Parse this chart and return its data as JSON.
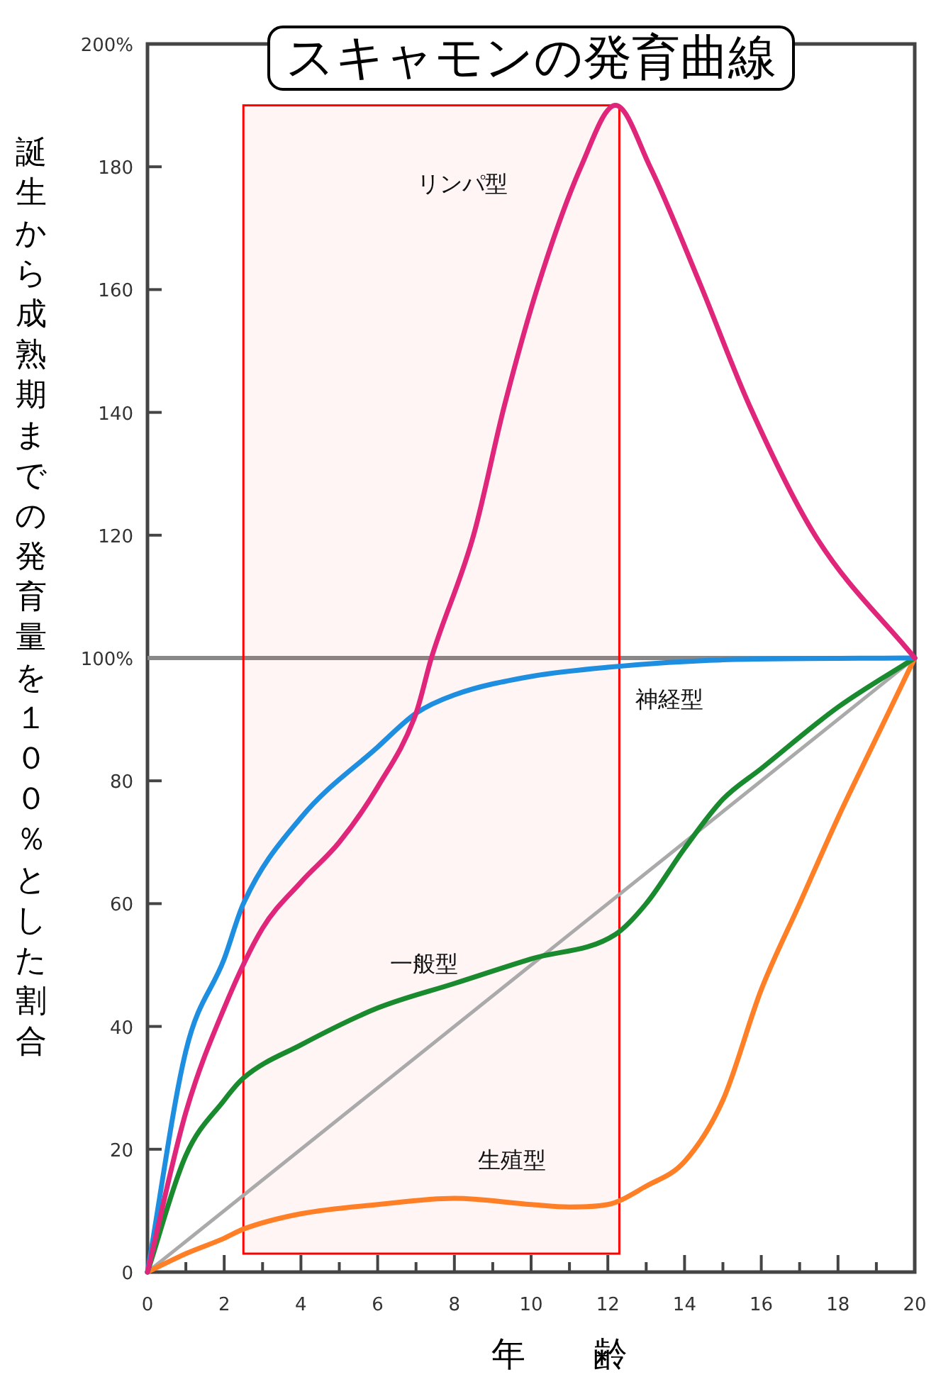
{
  "chart_data": {
    "type": "line",
    "title": "スキャモンの発育曲線",
    "xlabel": "年　　齢",
    "ylabel": "誕生から成熟期までの発育量を１００％とした割合",
    "xlim": [
      0,
      20
    ],
    "ylim": [
      0,
      200
    ],
    "xticks": [
      0,
      {
        "value": 1,
        "label": null
      },
      2,
      {
        "value": 3,
        "label": null
      },
      4,
      {
        "value": 5,
        "label": null
      },
      6,
      {
        "value": 7,
        "label": null
      },
      8,
      {
        "value": 9,
        "label": null
      },
      10,
      {
        "value": 11,
        "label": null
      },
      12,
      {
        "value": 13,
        "label": null
      },
      14,
      {
        "value": 15,
        "label": null
      },
      16,
      {
        "value": 17,
        "label": null
      },
      18,
      {
        "value": 19,
        "label": null
      },
      20
    ],
    "yticks": [
      0,
      20,
      40,
      60,
      80,
      {
        "value": 100,
        "label": "100%"
      },
      120,
      140,
      160,
      180,
      {
        "value": 200,
        "label": "200%"
      }
    ],
    "grid": false,
    "legend": false,
    "marker": "none",
    "line_style": "solid",
    "ref_lines": [
      {
        "axis": "y",
        "value": 100,
        "label": null,
        "color": "#888888"
      }
    ],
    "bands": [
      {
        "axis": "x",
        "from": 2.5,
        "to": 12.3,
        "label": null,
        "color": "#ff0000"
      }
    ],
    "series": [
      {
        "type": "line",
        "color": "#aaaaaa",
        "x": [
          0,
          20
        ],
        "values": [
          0,
          100
        ]
      },
      {
        "name": "生殖型",
        "color": "#ff7f27",
        "x": [
          0,
          1,
          2,
          2.5,
          4,
          6,
          8,
          10,
          11,
          12,
          13,
          14,
          15,
          16,
          17,
          18,
          19,
          20
        ],
        "values": [
          0,
          3,
          5.5,
          7,
          9.5,
          11,
          12,
          11,
          10.6,
          11,
          14,
          18,
          28,
          46,
          60,
          74,
          87,
          100
        ]
      },
      {
        "name": "一般型",
        "color": "#1a8a2e",
        "x": [
          0,
          1,
          2,
          2.5,
          4,
          6,
          8,
          10,
          12.2,
          13,
          14,
          15,
          16,
          18,
          20
        ],
        "values": [
          0,
          19,
          28,
          31.6,
          37,
          43,
          47,
          51,
          55,
          60,
          69,
          77,
          82,
          92,
          100
        ]
      },
      {
        "name": "神経型",
        "color": "#1e8fe0",
        "x": [
          0,
          1,
          2,
          2.5,
          4,
          6,
          7,
          8,
          10,
          12,
          15,
          20
        ],
        "values": [
          0,
          36,
          51,
          60,
          74,
          85.5,
          91,
          94,
          97,
          98.5,
          99.7,
          100
        ]
      },
      {
        "name": "リンパ型",
        "color": "#e0267a",
        "x": [
          0,
          1,
          2,
          3,
          4,
          5,
          6,
          7,
          7.4,
          8.5,
          9.3,
          10.2,
          11.3,
          12.2,
          13.1,
          14.4,
          15.7,
          17.4,
          20
        ],
        "values": [
          0,
          26,
          43,
          56,
          63.5,
          70,
          79,
          91,
          100,
          120,
          141,
          161,
          180,
          190,
          180,
          161,
          141,
          120,
          100
        ]
      }
    ]
  }
}
